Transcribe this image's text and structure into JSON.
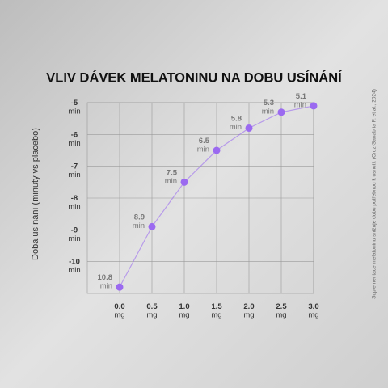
{
  "chart_data": {
    "type": "line",
    "title": "VLIV DÁVEK MELATONINU NA DOBU USÍNÁNÍ",
    "y_label": "Doba usínání (minuty vs placebo)",
    "source": "Suplementace melatoninu snižuje dobu potřebnou k usnutí. (Cruz-Sanabria F. et al., 2024)",
    "x": [
      0,
      0.5,
      1,
      1.5,
      2,
      2.5,
      3
    ],
    "series": [
      {
        "name": "Doba usínání",
        "color": "#9b6af0",
        "values": [
          -10.8,
          -8.9,
          -7.5,
          -6.5,
          -5.8,
          -5.3,
          -5.1
        ],
        "value_labels": [
          "10.8 min",
          "8.9 min",
          "7.5 min",
          "6.5 min",
          "5.8 min",
          "5.3 min",
          "5.1 min"
        ]
      }
    ],
    "xlim": [
      -0.5,
      3
    ],
    "xticks": [
      {
        "value": 0,
        "label": "0.0 mg"
      },
      {
        "value": 0.5,
        "label": "0.5 mg"
      },
      {
        "value": 1,
        "label": "1.0 mg"
      },
      {
        "value": 1.5,
        "label": "1.5 mg"
      },
      {
        "value": 2,
        "label": "2.0 mg"
      },
      {
        "value": 2.5,
        "label": "2.5 mg"
      },
      {
        "value": 3,
        "label": "3.0 mg"
      }
    ],
    "ylim": [
      -11,
      -5
    ],
    "yticks": [
      {
        "value": -5,
        "label": "-5 min"
      },
      {
        "value": -6,
        "label": "-6 min"
      },
      {
        "value": -7,
        "label": "-7 min"
      },
      {
        "value": -8,
        "label": "-8 min"
      },
      {
        "value": -9,
        "label": "-9 min"
      },
      {
        "value": -10,
        "label": "-10 min"
      }
    ],
    "grid": true
  }
}
